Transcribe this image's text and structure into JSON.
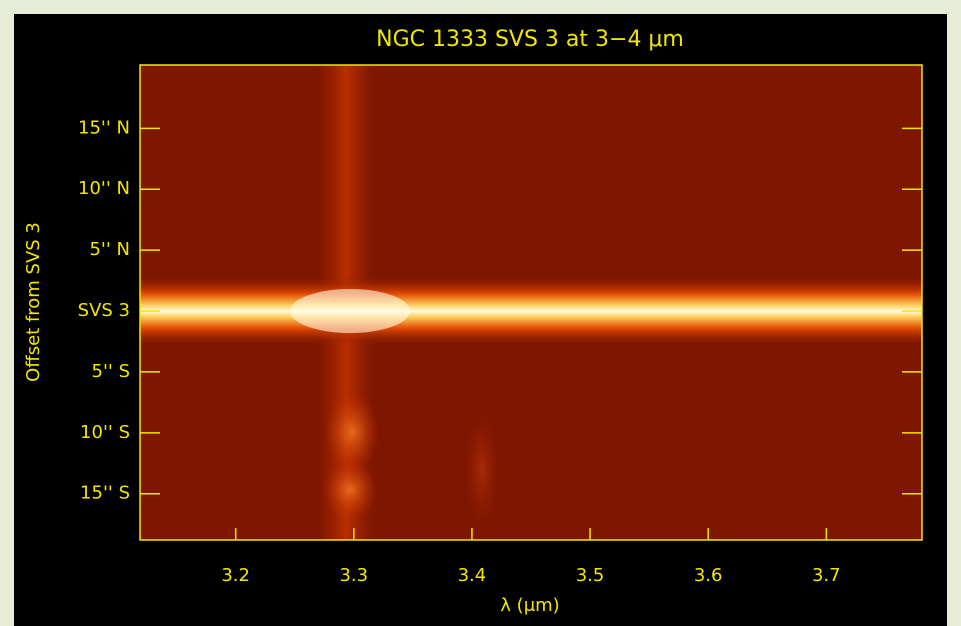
{
  "chart_data": {
    "type": "image",
    "title": "NGC 1333 SVS 3 at 3−4 μm",
    "x_label": "λ (μm)",
    "y_label": "Offset from SVS 3",
    "xlim": [
      3.119,
      3.781
    ],
    "xticks": [
      3.2,
      3.3,
      3.4,
      3.5,
      3.6,
      3.7
    ],
    "ylim": [
      -18.8,
      20.2
    ],
    "yticks": [
      {
        "value": 15,
        "label": "15'' N"
      },
      {
        "value": 10,
        "label": "10'' N"
      },
      {
        "value": 5,
        "label": "5'' N"
      },
      {
        "value": 0,
        "label": "SVS 3"
      },
      {
        "value": -5,
        "label": "5'' S"
      },
      {
        "value": -10,
        "label": "10'' S"
      },
      {
        "value": -15,
        "label": "15'' S"
      }
    ]
  }
}
